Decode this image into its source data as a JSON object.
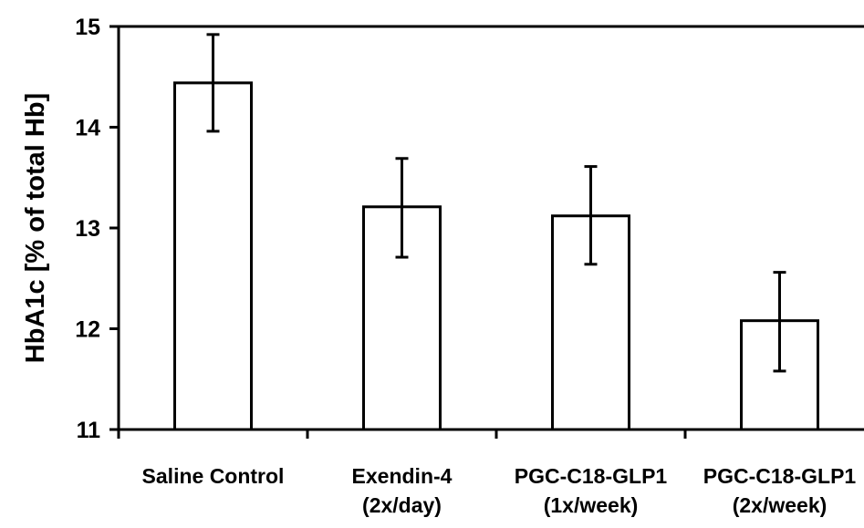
{
  "chart_data": {
    "type": "bar",
    "title": "",
    "xlabel": "",
    "ylabel": "HbA1c  [% of total Hb]",
    "ylim": [
      11,
      15
    ],
    "yticks": [
      "11",
      "12",
      "13",
      "14",
      "15"
    ],
    "grid": false,
    "legend": false,
    "categories": [
      [
        "Saline Control"
      ],
      [
        "Exendin-4",
        "(2x/day)"
      ],
      [
        "PGC-C18-GLP1",
        "(1x/week)"
      ],
      [
        "PGC-C18-GLP1",
        "(2x/week)"
      ]
    ],
    "values": [
      14.44,
      13.21,
      13.12,
      12.08
    ],
    "error_low": [
      13.96,
      12.71,
      12.64,
      11.58
    ],
    "error_high": [
      14.92,
      13.69,
      13.61,
      12.56
    ],
    "bar_fill": "#ffffff",
    "bar_stroke": "#000000"
  }
}
